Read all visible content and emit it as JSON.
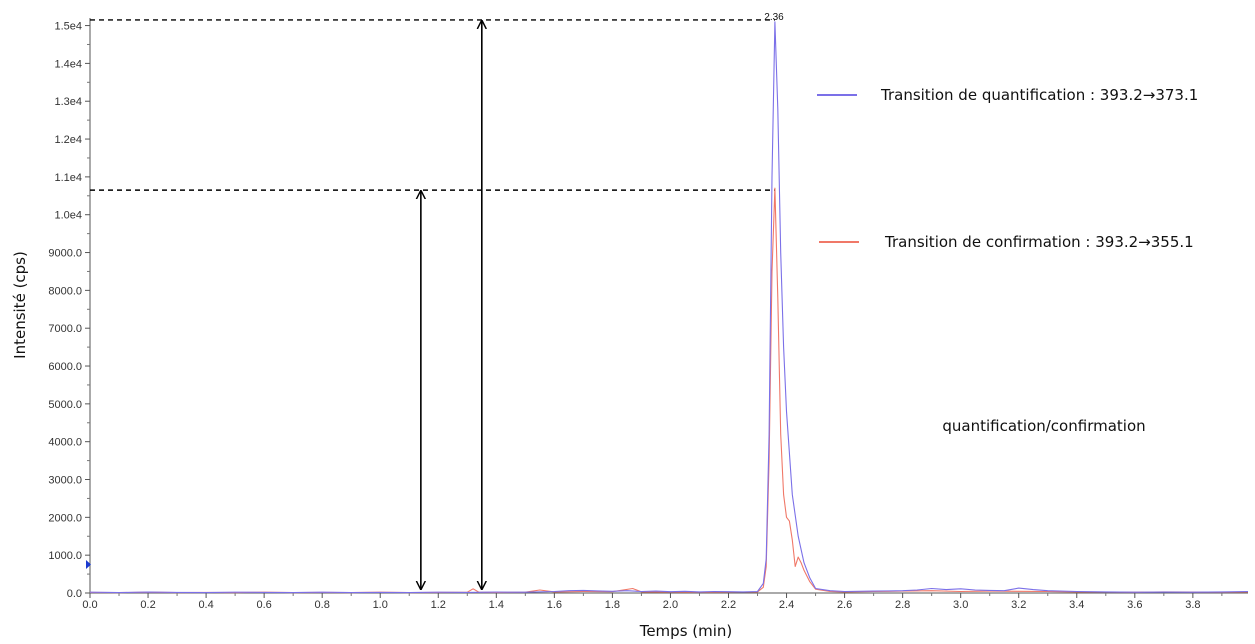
{
  "chart_data": {
    "type": "line",
    "title": "",
    "xlabel": "Temps (min)",
    "ylabel": "Intensité  (cps)",
    "xlim": [
      0.0,
      3.99
    ],
    "ylim": [
      0,
      15200
    ],
    "x_ticks": [
      "0.0",
      "0.2",
      "0.4",
      "0.6",
      "0.8",
      "1.0",
      "1.2",
      "1.4",
      "1.6",
      "1.8",
      "2.0",
      "2.2",
      "2.4",
      "2.6",
      "2.8",
      "3.0",
      "3.2",
      "3.4",
      "3.6",
      "3.8"
    ],
    "x_tick_values": [
      0.0,
      0.2,
      0.4,
      0.6,
      0.8,
      1.0,
      1.2,
      1.4,
      1.6,
      1.8,
      2.0,
      2.2,
      2.4,
      2.6,
      2.8,
      3.0,
      3.2,
      3.4,
      3.6,
      3.8
    ],
    "y_ticks": [
      "0.0",
      "1000.0",
      "2000.0",
      "3000.0",
      "4000.0",
      "5000.0",
      "6000.0",
      "7000.0",
      "8000.0",
      "9000.0",
      "1.0e4",
      "1.1e4",
      "1.2e4",
      "1.3e4",
      "1.4e4",
      "1.5e4"
    ],
    "y_tick_values": [
      0,
      1000,
      2000,
      3000,
      4000,
      5000,
      6000,
      7000,
      8000,
      9000,
      10000,
      11000,
      12000,
      13000,
      14000,
      15000
    ],
    "series": [
      {
        "name": "Transition de quantification : 393.2→373.1",
        "color": "#7b70e8",
        "x": [
          0.0,
          0.1,
          0.2,
          0.3,
          0.4,
          0.5,
          0.6,
          0.7,
          0.8,
          0.9,
          1.0,
          1.1,
          1.2,
          1.3,
          1.4,
          1.5,
          1.6,
          1.65,
          1.7,
          1.75,
          1.8,
          1.85,
          1.9,
          1.95,
          2.0,
          2.05,
          2.1,
          2.15,
          2.2,
          2.25,
          2.3,
          2.32,
          2.33,
          2.34,
          2.35,
          2.36,
          2.37,
          2.38,
          2.39,
          2.4,
          2.42,
          2.44,
          2.46,
          2.48,
          2.5,
          2.55,
          2.6,
          2.7,
          2.8,
          2.85,
          2.9,
          2.95,
          3.0,
          3.05,
          3.1,
          3.15,
          3.2,
          3.25,
          3.3,
          3.4,
          3.5,
          3.6,
          3.7,
          3.8,
          3.9,
          3.99
        ],
        "y": [
          20,
          10,
          25,
          15,
          10,
          20,
          15,
          10,
          20,
          10,
          15,
          10,
          20,
          15,
          25,
          20,
          40,
          60,
          70,
          55,
          45,
          60,
          40,
          50,
          35,
          45,
          30,
          40,
          35,
          30,
          40,
          250,
          900,
          4200,
          11000,
          15100,
          12800,
          9000,
          6500,
          4800,
          2600,
          1500,
          800,
          400,
          120,
          60,
          40,
          50,
          60,
          80,
          120,
          90,
          110,
          80,
          70,
          60,
          130,
          90,
          60,
          40,
          30,
          20,
          25,
          20,
          30,
          40
        ]
      },
      {
        "name": "Transition de confirmation : 393.2→355.1",
        "color": "#f07868",
        "x": [
          0.0,
          0.1,
          0.2,
          0.3,
          0.4,
          0.5,
          0.6,
          0.7,
          0.8,
          0.9,
          1.0,
          1.1,
          1.2,
          1.3,
          1.32,
          1.34,
          1.4,
          1.5,
          1.55,
          1.6,
          1.7,
          1.8,
          1.87,
          1.9,
          2.0,
          2.1,
          2.2,
          2.3,
          2.32,
          2.33,
          2.34,
          2.35,
          2.36,
          2.37,
          2.38,
          2.39,
          2.4,
          2.41,
          2.42,
          2.43,
          2.44,
          2.45,
          2.46,
          2.48,
          2.5,
          2.55,
          2.6,
          2.7,
          2.8,
          2.9,
          3.0,
          3.1,
          3.2,
          3.3,
          3.4,
          3.5,
          3.6,
          3.7,
          3.8,
          3.9,
          3.99
        ],
        "y": [
          15,
          10,
          20,
          10,
          15,
          10,
          20,
          10,
          15,
          10,
          20,
          10,
          15,
          20,
          110,
          20,
          15,
          20,
          80,
          30,
          40,
          35,
          120,
          30,
          25,
          20,
          25,
          30,
          150,
          700,
          3500,
          8500,
          10700,
          7800,
          4200,
          2600,
          2000,
          1900,
          1400,
          700,
          950,
          800,
          600,
          300,
          100,
          40,
          30,
          40,
          50,
          60,
          40,
          50,
          45,
          40,
          30,
          25,
          20,
          30,
          25,
          20,
          30
        ]
      }
    ],
    "peak_label": "2.36",
    "annotations": {
      "ratio_text": "quantification/confirmation",
      "quant_level": 15150,
      "conf_level": 10650,
      "quant_arrow_x": 1.35,
      "conf_arrow_x": 1.14
    },
    "grid": false,
    "legend_position": "right"
  }
}
